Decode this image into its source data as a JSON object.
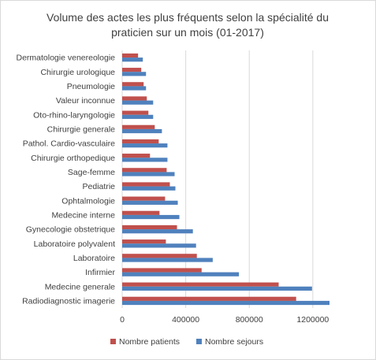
{
  "chart_data": {
    "type": "bar",
    "orientation": "horizontal",
    "title": "Volume des actes les plus fréquents selon la spécialité du praticien sur un mois (01-2017)",
    "title_lines": [
      "Volume des actes les plus fréquents selon la spécialité du",
      "praticien sur un mois (01-2017)"
    ],
    "xlabel": "",
    "ylabel": "",
    "xlim": [
      0,
      1300000
    ],
    "x_ticks": [
      "0",
      "400000",
      "800000",
      "1200000"
    ],
    "x_tick_values": [
      0,
      400000,
      800000,
      1200000
    ],
    "grid": true,
    "legend_position": "bottom",
    "categories": [
      "Dermatologie venereologie",
      "Chirurgie urologique",
      "Pneumologie",
      "Valeur inconnue",
      "Oto-rhino-laryngologie",
      "Chirurgie generale",
      "Pathol. Cardio-vasculaire",
      "Chirurgie orthopedique",
      "Sage-femme",
      "Pediatrie",
      "Ophtalmologie",
      "Medecine interne",
      "Gynecologie obstetrique",
      "Laboratoire polyvalent",
      "Laboratoire",
      "Infirmier",
      "Medecine generale",
      "Radiodiagnostic imagerie"
    ],
    "series": [
      {
        "name": "Nombre patients",
        "color": "#c0504d",
        "values": [
          100000,
          120000,
          135000,
          155000,
          165000,
          205000,
          230000,
          175000,
          280000,
          300000,
          270000,
          235000,
          345000,
          275000,
          470000,
          500000,
          985000,
          1095000
        ]
      },
      {
        "name": "Nombre sejours",
        "color": "#4f81bd",
        "values": [
          130000,
          150000,
          150000,
          195000,
          195000,
          250000,
          285000,
          285000,
          330000,
          335000,
          350000,
          360000,
          445000,
          465000,
          570000,
          735000,
          1195000,
          1305000
        ]
      }
    ]
  }
}
